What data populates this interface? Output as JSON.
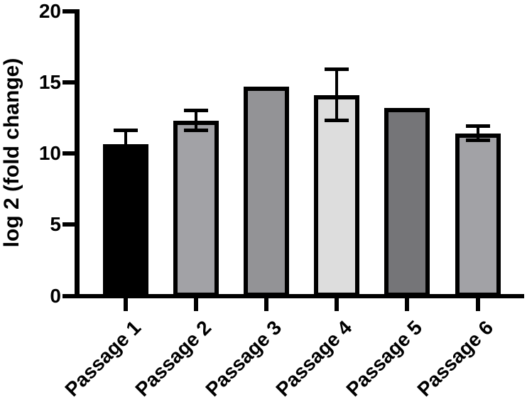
{
  "chart_data": {
    "type": "bar",
    "title": "",
    "xlabel": "",
    "ylabel": "log 2 (fold change)",
    "categories": [
      "Passage 1",
      "Passage 2",
      "Passage 3",
      "Passage 4",
      "Passage 5",
      "Passage 6"
    ],
    "values": [
      10.65,
      12.3,
      14.7,
      14.1,
      13.2,
      11.4
    ],
    "errors_sd": [
      0.95,
      0.7,
      null,
      1.8,
      null,
      0.5
    ],
    "bar_colors": [
      "#000000",
      "#A2A2A6",
      "#939396",
      "#DDDDDD",
      "#757578",
      "#A2A2A6"
    ],
    "bar_border_color": "#000000",
    "axis_color": "#000000",
    "background_color": "#FFFFFF",
    "ylim": [
      0,
      20
    ],
    "yticks": [
      0,
      5,
      10,
      15,
      20
    ],
    "grid": false,
    "legend": null
  }
}
